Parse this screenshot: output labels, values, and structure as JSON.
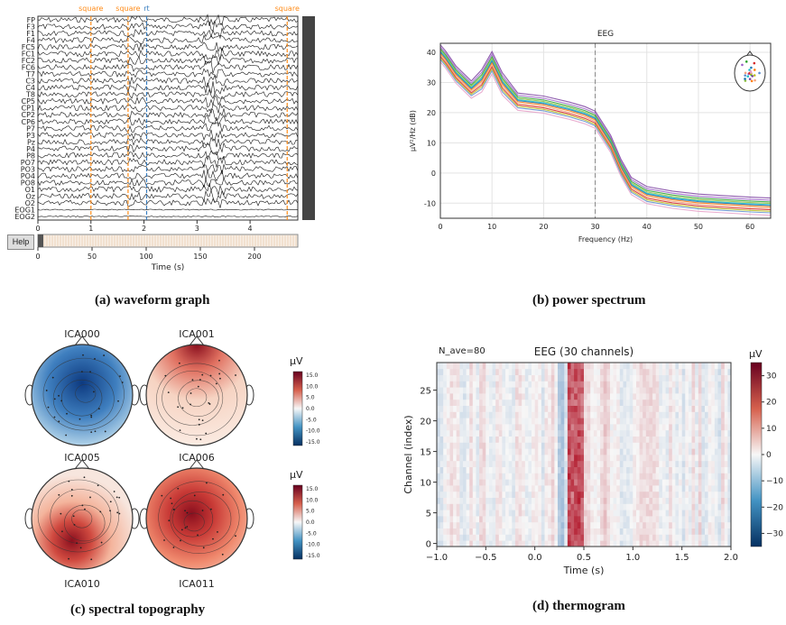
{
  "captions": {
    "a": "(a) waveform graph",
    "b": "(b) power spectrum",
    "c": "(c) spectral topography",
    "d": "(d) thermogram"
  },
  "waveform": {
    "help_label": "Help",
    "channel_labels": [
      "FP",
      "F3",
      "F1",
      "F4",
      "FC5",
      "FC1",
      "FC2",
      "FC6",
      "T7",
      "C3",
      "C4",
      "T8",
      "CP5",
      "CP1",
      "CP2",
      "CP6",
      "P7",
      "P3",
      "Pz",
      "P4",
      "P8",
      "PO7",
      "PO3",
      "PO4",
      "PO8",
      "O1",
      "Oz",
      "O2",
      "EOG1",
      "EOG2"
    ],
    "events": [
      {
        "label": "square",
        "time": 1.0,
        "color": "#ff8c1a"
      },
      {
        "label": "square",
        "time": 1.7,
        "color": "#ff8c1a"
      },
      {
        "label": "rt",
        "time": 2.05,
        "color": "#3a7fc0"
      },
      {
        "label": "square",
        "time": 4.7,
        "color": "#ff8c1a"
      }
    ],
    "top_ticks": [
      "0",
      "1",
      "2",
      "3",
      "4"
    ],
    "bottom_ticks": [
      "0",
      "50",
      "100",
      "150",
      "200"
    ],
    "xlabel": "Time (s)"
  },
  "chart_data": [
    {
      "type": "line",
      "title": "EEG",
      "xlabel": "Frequency (Hz)",
      "ylabel": "µV²/Hz (dB)",
      "xlim": [
        0,
        64
      ],
      "ylim": [
        -15,
        43
      ],
      "xticks": [
        0,
        10,
        20,
        30,
        40,
        50,
        60
      ],
      "yticks": [
        -10,
        0,
        10,
        20,
        30,
        40
      ],
      "marker_line_x": 30,
      "shape_profile": {
        "x": [
          0,
          1,
          3,
          6,
          8,
          10,
          12,
          15,
          20,
          25,
          28,
          30,
          33,
          35,
          37,
          40,
          45,
          50,
          55,
          60,
          64
        ],
        "y": [
          40,
          38,
          33,
          28,
          31,
          37,
          30,
          24,
          23,
          21,
          19.5,
          18,
          10,
          2,
          -4,
          -7,
          -8.5,
          -9.5,
          -10,
          -10.5,
          -10.8
        ]
      },
      "series_colors": [
        "#7b3fa0",
        "#9a5fc8",
        "#2ca02c",
        "#8cbf3f",
        "#17becf",
        "#1f77b4",
        "#ff7f0e",
        "#f4a582",
        "#d62728",
        "#bcbd22",
        "#5f8fd0",
        "#e5a0c8"
      ],
      "series_offsets": [
        2.5,
        1.8,
        1.2,
        0.7,
        0.3,
        0,
        -0.4,
        -0.9,
        -1.4,
        -1.9,
        -2.4,
        -3.2
      ]
    },
    {
      "type": "heatmap",
      "title": "EEG (30 channels)",
      "annotation": "N_ave=80",
      "xlabel": "Time (s)",
      "ylabel": "Channel (index)",
      "xlim": [
        -1.0,
        2.0
      ],
      "ylim": [
        0,
        29
      ],
      "xtick_labels": [
        "−1.0",
        "−0.5",
        "0.0",
        "0.5",
        "1.0",
        "1.5",
        "2.0"
      ],
      "ytick_labels": [
        "0",
        "5",
        "10",
        "15",
        "20",
        "25"
      ],
      "colorbar": {
        "unit": "µV",
        "range": [
          -35,
          35
        ],
        "tick_labels": [
          "30",
          "20",
          "10",
          "0",
          "−10",
          "−20",
          "−30"
        ]
      }
    }
  ],
  "topography": {
    "unit": "µV",
    "colorbar_ticks": [
      "15.0",
      "10.0",
      "5.0",
      "0.0",
      "-5.0",
      "-10.0",
      "-15.0"
    ],
    "maps": [
      {
        "label": "ICA000",
        "pattern": "blue-center"
      },
      {
        "label": "ICA001",
        "pattern": "red-front"
      },
      {
        "label": "ICA005",
        "pattern": "red-back"
      },
      {
        "label": "ICA006",
        "pattern": "red-full"
      }
    ],
    "bottom_labels": [
      "ICA010",
      "ICA011"
    ]
  }
}
